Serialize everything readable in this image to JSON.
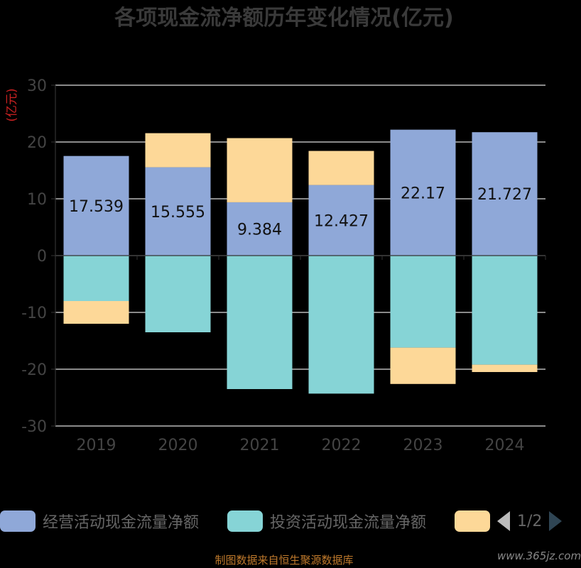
{
  "chart_data": {
    "type": "bar",
    "title": "各项现金流净额历年变化情况(亿元)",
    "ylabel": "(亿元)",
    "categories": [
      "2019",
      "2020",
      "2021",
      "2022",
      "2023",
      "2024"
    ],
    "ylim": [
      -30,
      30
    ],
    "yticks": [
      30,
      20,
      10,
      0,
      -10,
      -20,
      -30
    ],
    "grid": true,
    "stacked": true,
    "series": [
      {
        "name": "经营活动现金流量净额",
        "color": "#8fa8d8",
        "values": [
          17.539,
          15.555,
          9.384,
          12.427,
          22.17,
          21.727
        ],
        "labels": [
          "17.539",
          "15.555",
          "9.384",
          "12.427",
          "22.17",
          "21.727"
        ]
      },
      {
        "name": "投资活动现金流量净额",
        "color": "#86d4d6",
        "values": [
          -8,
          -13.5,
          -23.5,
          -24.3,
          -16.2,
          -19.2
        ]
      },
      {
        "name": "",
        "color": "#fdd898",
        "values": [
          -4,
          6,
          11.3,
          6,
          -6.4,
          -1.3
        ]
      }
    ],
    "legend_position": "bottom"
  },
  "legend": {
    "page": "1/2"
  },
  "footer": {
    "source": "制图数据来自恒生聚源数据库",
    "watermark": "www.365jz.com"
  }
}
